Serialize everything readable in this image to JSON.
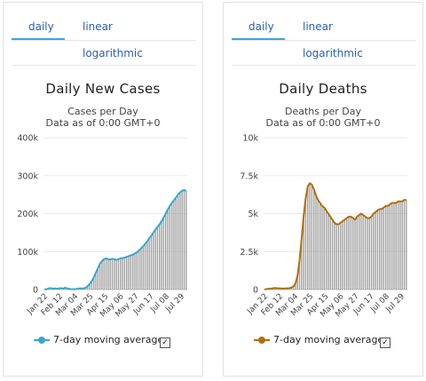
{
  "tabs": {
    "daily": "daily",
    "linear": "linear",
    "logarithmic": "logarithmic"
  },
  "legend_label": "7-day moving average",
  "check_glyph": "✓",
  "colors": {
    "bars": "#a0a0a0",
    "cases_line": "#3aa6cf",
    "deaths_line": "#b0700e",
    "tab_active": "#36a8dd"
  },
  "chart_data": [
    {
      "type": "bar",
      "title": "Daily New Cases",
      "subtitle": "Cases per Day",
      "subtitle2": "Data as of 0:00 GMT+0",
      "ylim": [
        0,
        400000
      ],
      "yticks": [
        "0",
        "100k",
        "200k",
        "300k",
        "400k"
      ],
      "xticks": [
        "Jan 22",
        "Feb 12",
        "Mar 04",
        "Mar 25",
        "Apr 15",
        "May 06",
        "May 27",
        "Jun 17",
        "Jul 08",
        "Jul 29"
      ],
      "series": [
        {
          "name": "7-day moving average",
          "values": [
            500,
            600,
            3000,
            4000,
            2000,
            3000,
            2000,
            3000,
            4000,
            2000,
            5000,
            3000,
            2000,
            1000,
            1000,
            1000,
            2000,
            3000,
            3000,
            3000,
            5000,
            9000,
            15000,
            22000,
            32000,
            44000,
            56000,
            68000,
            75000,
            80000,
            82000,
            80000,
            79000,
            81000,
            80000,
            78000,
            80000,
            82000,
            83000,
            84000,
            86000,
            88000,
            90000,
            92000,
            95000,
            98000,
            103000,
            108000,
            114000,
            120000,
            127000,
            135000,
            142000,
            150000,
            158000,
            165000,
            172000,
            180000,
            190000,
            200000,
            210000,
            220000,
            228000,
            235000,
            242000,
            250000,
            256000,
            260000,
            262000,
            260000
          ]
        }
      ],
      "bars": [
        500,
        600,
        3000,
        4000,
        2000,
        3000,
        2000,
        3000,
        4000,
        2000,
        5000,
        3000,
        2000,
        1000,
        1000,
        1000,
        2000,
        3000,
        3000,
        3000,
        5000,
        9000,
        15000,
        22000,
        32000,
        44000,
        56000,
        68000,
        75000,
        80000,
        82000,
        80000,
        79000,
        81000,
        80000,
        78000,
        80000,
        82000,
        83000,
        84000,
        86000,
        88000,
        90000,
        92000,
        95000,
        98000,
        103000,
        108000,
        114000,
        120000,
        127000,
        135000,
        142000,
        150000,
        158000,
        165000,
        172000,
        180000,
        190000,
        200000,
        210000,
        220000,
        228000,
        235000,
        242000,
        250000,
        256000,
        260000,
        262000,
        260000
      ]
    },
    {
      "type": "bar",
      "title": "Daily Deaths",
      "subtitle": "Deaths per Day",
      "subtitle2": "Data as of 0:00 GMT+0",
      "ylim": [
        0,
        10000
      ],
      "yticks": [
        "0",
        "2.5k",
        "5k",
        "7.5k",
        "10k"
      ],
      "xticks": [
        "Jan 22",
        "Feb 12",
        "Mar 04",
        "Mar 25",
        "Apr 15",
        "May 06",
        "May 27",
        "Jun 17",
        "Jul 08",
        "Jul 29"
      ],
      "series": [
        {
          "name": "7-day moving average",
          "values": [
            20,
            30,
            50,
            60,
            80,
            100,
            90,
            80,
            70,
            60,
            70,
            80,
            90,
            120,
            200,
            400,
            900,
            1900,
            3300,
            4800,
            6000,
            6800,
            7000,
            6900,
            6600,
            6200,
            5900,
            5700,
            5500,
            5400,
            5200,
            5000,
            4800,
            4600,
            4400,
            4300,
            4300,
            4400,
            4500,
            4600,
            4700,
            4800,
            4800,
            4700,
            4600,
            4800,
            4900,
            5000,
            4900,
            4800,
            4700,
            4700,
            4800,
            5000,
            5100,
            5200,
            5300,
            5300,
            5400,
            5500,
            5500,
            5600,
            5700,
            5700,
            5700,
            5800,
            5800,
            5800,
            5900,
            5900
          ]
        }
      ],
      "bars": [
        20,
        30,
        50,
        60,
        80,
        100,
        90,
        80,
        70,
        60,
        70,
        80,
        90,
        120,
        200,
        400,
        900,
        1900,
        3300,
        4800,
        6000,
        6800,
        7000,
        6900,
        6600,
        6200,
        5900,
        5700,
        5500,
        5400,
        5200,
        5000,
        4800,
        4600,
        4400,
        4300,
        4300,
        4400,
        4500,
        4600,
        4700,
        4800,
        4800,
        4700,
        4600,
        4800,
        4900,
        5000,
        4900,
        4800,
        4700,
        4700,
        4800,
        5000,
        5100,
        5200,
        5300,
        5300,
        5400,
        5500,
        5500,
        5600,
        5700,
        5700,
        5700,
        5800,
        5800,
        5800,
        5900,
        5900
      ]
    }
  ]
}
